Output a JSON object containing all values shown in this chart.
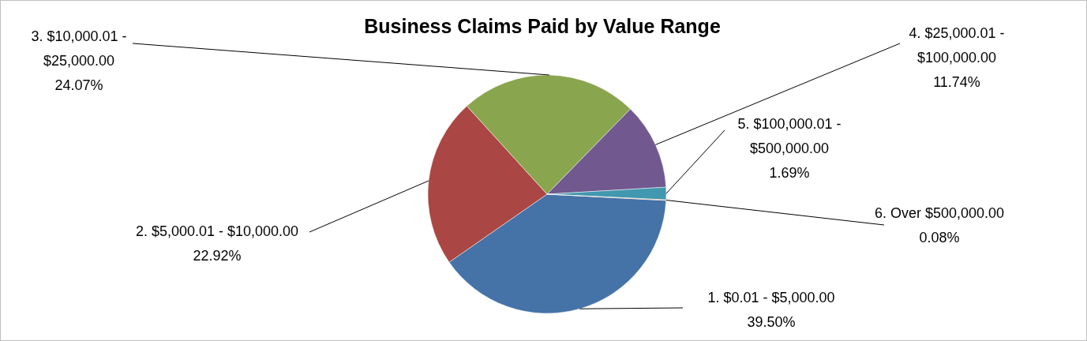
{
  "chart_data": {
    "type": "pie",
    "title": "Business Claims Paid by Value Range",
    "categories": [
      "1. $0.01 - $5,000.00",
      "2. $5,000.01 - $10,000.00",
      "3. $10,000.01 - $25,000.00",
      "4. $25,000.01 - $100,000.00",
      "5. $100,000.01 - $500,000.00",
      "6. Over $500,000.00"
    ],
    "values": [
      39.5,
      22.92,
      24.07,
      11.74,
      1.69,
      0.08
    ],
    "colors": [
      "#4572a7",
      "#aa4643",
      "#89a54e",
      "#71588f",
      "#4198af",
      "#db843d"
    ],
    "value_labels": [
      "39.50%",
      "22.92%",
      "24.07%",
      "11.74%",
      "1.69%",
      "0.08%"
    ]
  }
}
